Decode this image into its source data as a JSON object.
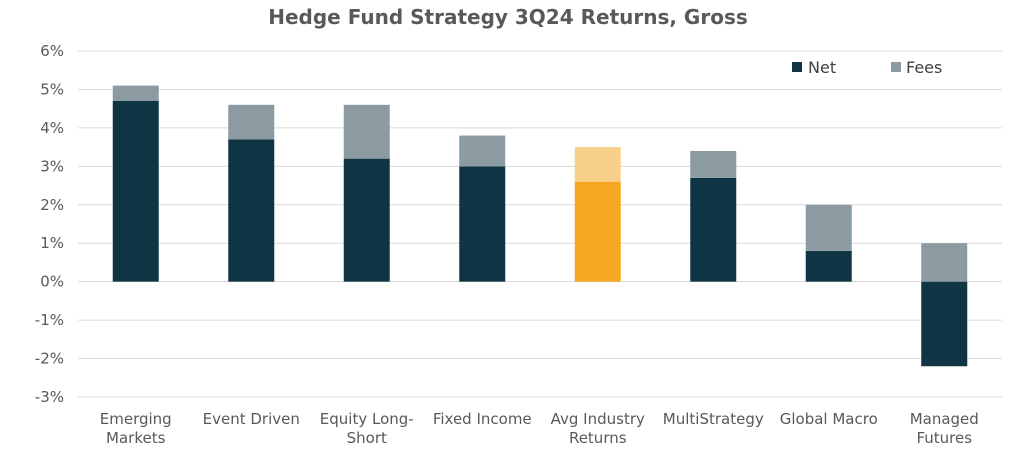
{
  "chart_data": {
    "type": "bar",
    "stacked": true,
    "title": "Hedge Fund Strategy 3Q24 Returns, Gross",
    "categories": [
      [
        "Emerging",
        "Markets"
      ],
      [
        "Event Driven"
      ],
      [
        "Equity Long-",
        "Short"
      ],
      [
        "Fixed Income"
      ],
      [
        "Avg Industry",
        "Returns"
      ],
      [
        "MultiStrategy"
      ],
      [
        "Global Macro"
      ],
      [
        "Managed",
        "Futures"
      ]
    ],
    "series": [
      {
        "name": "Net",
        "values": [
          4.7,
          3.7,
          3.2,
          3.0,
          2.6,
          2.7,
          0.8,
          -2.2
        ]
      },
      {
        "name": "Fees",
        "values": [
          0.4,
          0.9,
          1.4,
          0.8,
          0.9,
          0.7,
          1.2,
          1.0
        ]
      }
    ],
    "ylim": [
      -3,
      6
    ],
    "yticks": [
      "-3%",
      "-2%",
      "-1%",
      "0%",
      "1%",
      "2%",
      "3%",
      "4%",
      "5%",
      "6%"
    ],
    "yticks_values": [
      -3,
      -2,
      -1,
      0,
      1,
      2,
      3,
      4,
      5,
      6
    ],
    "grid": true,
    "legend_position": "top-right",
    "colors": {
      "net": "#0f3545",
      "fees": "#8c9ba2",
      "highlight_net": "#f5a623",
      "highlight_fees": "#f8d089",
      "grid": "#d9d9d9",
      "text": "#595959"
    },
    "highlight_index": 4
  }
}
